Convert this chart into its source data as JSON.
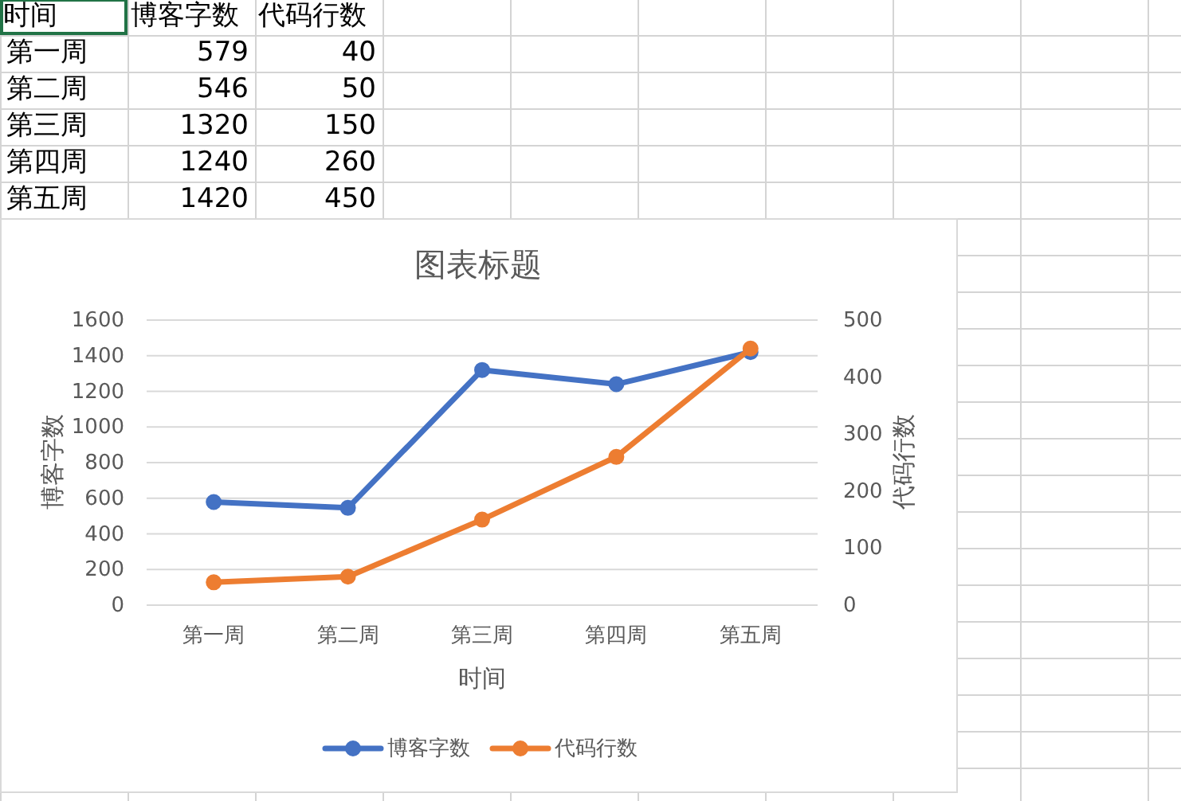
{
  "chart_data": [
    {
      "type": "other",
      "xlabel": "时间",
      "categories": [
        "第一周",
        "第二周",
        "第三周",
        "第四周",
        "第五周"
      ],
      "series": [
        {
          "name": "博客字数",
          "values": [
            579,
            546,
            1320,
            1240,
            1420
          ]
        },
        {
          "name": "代码行数",
          "values": [
            40,
            50,
            150,
            260,
            450
          ]
        }
      ],
      "data_labels": true
    },
    {
      "type": "line",
      "title": "图表标题",
      "xlabel": "时间",
      "ylabel": "博客字数",
      "y2label": "代码行数",
      "categories": [
        "第一周",
        "第二周",
        "第三周",
        "第四周",
        "第五周"
      ],
      "series": [
        {
          "name": "博客字数",
          "color": "#4472c4",
          "values": [
            579,
            546,
            1320,
            1240,
            1420
          ]
        },
        {
          "name": "代码行数",
          "color": "#ed7d31",
          "values": [
            40,
            50,
            150,
            260,
            450
          ],
          "axis": "y2"
        }
      ],
      "ylim": [
        0,
        1600
      ],
      "yticks": [
        0,
        200,
        400,
        600,
        800,
        1000,
        1200,
        1400,
        1600
      ],
      "y2lim": [
        0,
        500
      ],
      "y2ticks": [
        0,
        100,
        200,
        300,
        400,
        500
      ],
      "grid": "y",
      "legend": "bottom",
      "marker": "circle",
      "line_style": "solid"
    }
  ]
}
